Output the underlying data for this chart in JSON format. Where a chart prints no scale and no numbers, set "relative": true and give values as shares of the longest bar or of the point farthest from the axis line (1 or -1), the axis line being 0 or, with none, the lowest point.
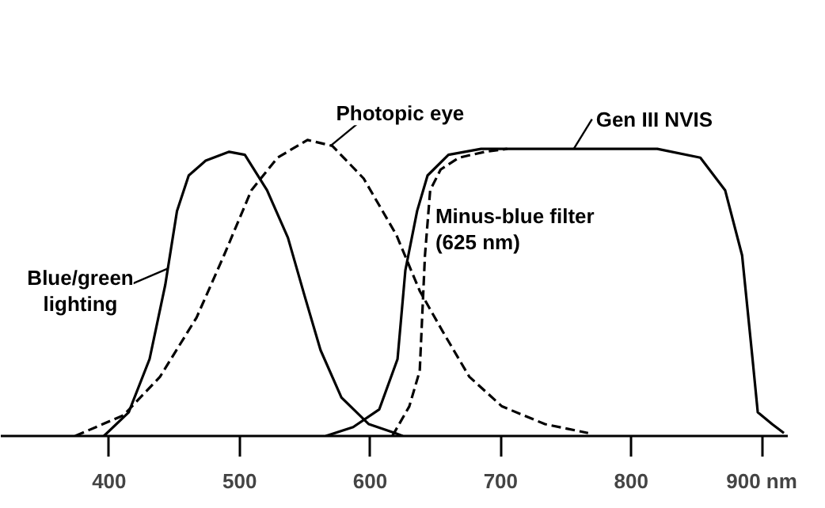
{
  "chart_data": {
    "type": "line",
    "relative": true,
    "xlim": [
      317,
      920
    ],
    "xticks": [
      400,
      500,
      600,
      700,
      800,
      {
        "value": 900,
        "label": "900 nm"
      }
    ],
    "grid": false,
    "legend": false,
    "marker": "none",
    "series": [
      {
        "name": "Blue/green\nlighting",
        "color": "#000000",
        "line_style": "solid",
        "x": [
          396,
          415,
          431,
          443,
          452,
          461,
          474,
          492,
          504,
          521,
          537,
          550,
          562,
          578,
          599,
          619,
          625
        ],
        "values": [
          0,
          0.08,
          0.26,
          0.51,
          0.76,
          0.88,
          0.93,
          0.96,
          0.95,
          0.83,
          0.67,
          0.47,
          0.29,
          0.13,
          0.04,
          0.01,
          0
        ]
      },
      {
        "name": "Photopic eye",
        "color": "#000000",
        "line_style": "dashed",
        "x": [
          374,
          411,
          439,
          467,
          488,
          509,
          529,
          552,
          571,
          595,
          620,
          638,
          656,
          676,
          701,
          734,
          767
        ],
        "values": [
          0,
          0.07,
          0.2,
          0.4,
          0.61,
          0.83,
          0.94,
          1.0,
          0.98,
          0.87,
          0.68,
          0.49,
          0.35,
          0.2,
          0.1,
          0.04,
          0.01
        ]
      },
      {
        "name": "Gen III NVIS",
        "color": "#000000",
        "line_style": "solid",
        "x": [
          566,
          587,
          607,
          621,
          627,
          636,
          644,
          660,
          685,
          758,
          820,
          853,
          872,
          885,
          893,
          897,
          908,
          917
        ],
        "values": [
          0,
          0.03,
          0.09,
          0.26,
          0.56,
          0.76,
          0.88,
          0.95,
          0.97,
          0.97,
          0.97,
          0.94,
          0.83,
          0.61,
          0.26,
          0.08,
          0.04,
          0.01
        ]
      },
      {
        "name": "Minus-blue filter\n(625 nm)",
        "color": "#000000",
        "line_style": "dashed",
        "x": [
          617,
          630,
          638,
          642,
          646,
          654,
          668,
          688,
          705
        ],
        "values": [
          0,
          0.1,
          0.22,
          0.61,
          0.83,
          0.9,
          0.94,
          0.96,
          0.97
        ]
      }
    ]
  }
}
